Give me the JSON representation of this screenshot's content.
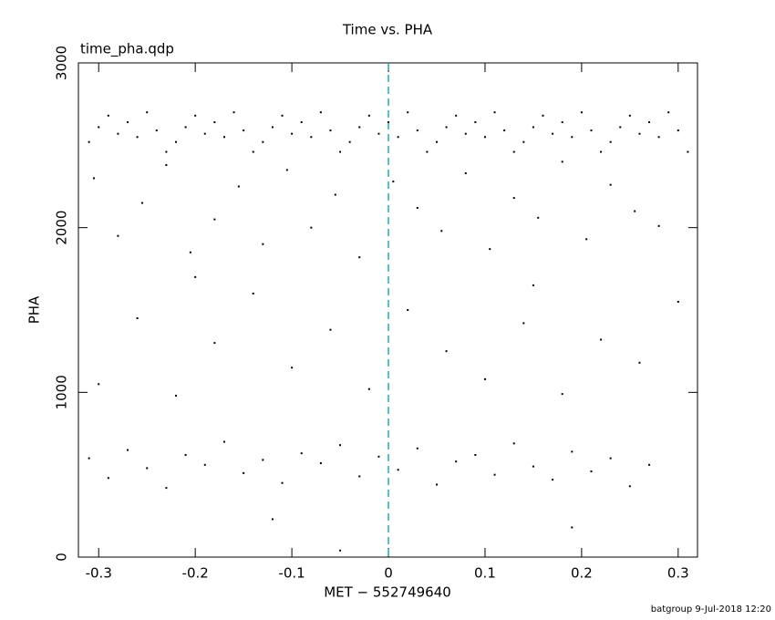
{
  "chart_data": {
    "type": "scatter",
    "title": "Time vs. PHA",
    "subtitle": "time_pha.qdp",
    "x_label": "MET − 552749640",
    "y_label": "PHA",
    "footer": "batgroup  9-Jul-2018 12:20",
    "color": "#000000",
    "vline": {
      "x": 0,
      "color": "#00a0a0"
    },
    "xlim": [
      -0.321,
      0.32
    ],
    "ylim": [
      0,
      3000
    ],
    "xticks": [
      -0.3,
      -0.2,
      -0.1,
      0,
      0.1,
      0.2,
      0.3
    ],
    "yticks": [
      0,
      1000,
      2000,
      3000
    ],
    "x": [
      -0.31,
      -0.3,
      -0.29,
      -0.28,
      -0.27,
      -0.26,
      -0.25,
      -0.24,
      -0.23,
      -0.22,
      -0.21,
      -0.2,
      -0.19,
      -0.18,
      -0.17,
      -0.16,
      -0.15,
      -0.14,
      -0.13,
      -0.12,
      -0.11,
      -0.1,
      -0.09,
      -0.08,
      -0.07,
      -0.06,
      -0.05,
      -0.04,
      -0.03,
      -0.02,
      -0.01,
      0.0,
      0.01,
      0.02,
      0.03,
      0.04,
      0.05,
      0.06,
      0.07,
      0.08,
      0.09,
      0.1,
      0.11,
      0.12,
      0.13,
      0.14,
      0.15,
      0.16,
      0.17,
      0.18,
      0.19,
      0.2,
      0.21,
      0.22,
      0.23,
      0.24,
      0.25,
      0.26,
      0.27,
      0.28,
      0.29,
      0.3,
      0.31,
      -0.305,
      -0.28,
      -0.255,
      -0.23,
      -0.205,
      -0.18,
      -0.155,
      -0.13,
      -0.105,
      -0.08,
      -0.055,
      -0.03,
      0.005,
      0.03,
      0.055,
      0.08,
      0.105,
      0.13,
      0.155,
      0.18,
      0.205,
      0.23,
      0.255,
      0.28,
      -0.3,
      -0.26,
      -0.22,
      -0.18,
      -0.14,
      -0.1,
      -0.06,
      -0.02,
      0.02,
      0.06,
      0.1,
      0.14,
      0.18,
      0.22,
      0.26,
      0.3,
      -0.2,
      0.15,
      -0.31,
      -0.29,
      -0.27,
      -0.25,
      -0.23,
      -0.21,
      -0.19,
      -0.17,
      -0.15,
      -0.13,
      -0.11,
      -0.09,
      -0.07,
      -0.05,
      -0.03,
      -0.01,
      0.01,
      0.03,
      0.05,
      0.07,
      0.09,
      0.11,
      0.13,
      0.15,
      0.17,
      0.19,
      0.21,
      0.23,
      0.25,
      0.27,
      -0.05,
      -0.12,
      0.19
    ],
    "values": [
      2520,
      2610,
      2680,
      2570,
      2640,
      2550,
      2700,
      2590,
      2460,
      2520,
      2610,
      2680,
      2570,
      2640,
      2550,
      2700,
      2590,
      2460,
      2520,
      2610,
      2680,
      2570,
      2640,
      2550,
      2700,
      2590,
      2460,
      2520,
      2610,
      2680,
      2570,
      2640,
      2550,
      2700,
      2590,
      2460,
      2520,
      2610,
      2680,
      2570,
      2640,
      2550,
      2700,
      2590,
      2460,
      2520,
      2610,
      2680,
      2570,
      2640,
      2550,
      2700,
      2590,
      2460,
      2520,
      2610,
      2680,
      2570,
      2640,
      2550,
      2700,
      2590,
      2460,
      2300,
      1950,
      2150,
      2380,
      1850,
      2050,
      2250,
      1900,
      2350,
      2000,
      2200,
      1820,
      2280,
      2120,
      1980,
      2330,
      1870,
      2180,
      2060,
      2400,
      1930,
      2260,
      2100,
      2010,
      1050,
      1450,
      980,
      1300,
      1600,
      1150,
      1380,
      1020,
      1500,
      1250,
      1080,
      1420,
      990,
      1320,
      1180,
      1550,
      1700,
      1650,
      600,
      480,
      650,
      540,
      420,
      620,
      560,
      700,
      510,
      590,
      450,
      630,
      570,
      680,
      490,
      610,
      530,
      660,
      440,
      580,
      620,
      500,
      690,
      550,
      470,
      640,
      520,
      600,
      430,
      560,
      40,
      230,
      180
    ]
  }
}
